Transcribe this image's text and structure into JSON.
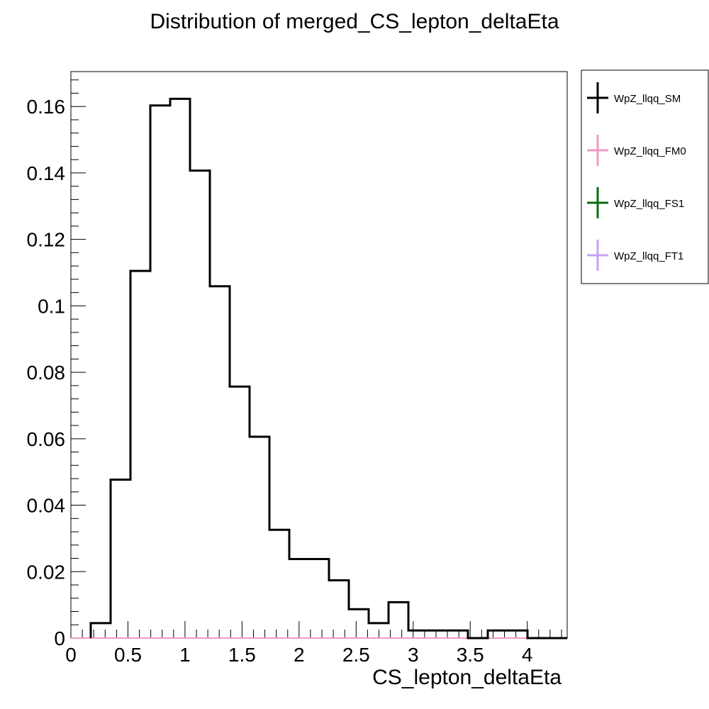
{
  "chart_data": {
    "type": "histogram",
    "title": "Distribution of merged_CS_lepton_deltaEta",
    "xlabel": "CS_lepton_deltaEta",
    "ylabel": "",
    "xlim": [
      0,
      4.35
    ],
    "ylim": [
      0,
      0.1705
    ],
    "xticks": [
      0,
      0.5,
      1,
      1.5,
      2,
      2.5,
      3,
      3.5,
      4
    ],
    "xtick_labels": [
      "0",
      "0.5",
      "1",
      "1.5",
      "2",
      "2.5",
      "3",
      "3.5",
      "4"
    ],
    "yticks": [
      0,
      0.02,
      0.04,
      0.06,
      0.08,
      0.1,
      0.12,
      0.14,
      0.16
    ],
    "ytick_labels": [
      "0",
      "0.02",
      "0.04",
      "0.06",
      "0.08",
      "0.1",
      "0.12",
      "0.14",
      "0.16"
    ],
    "legend_position": "right",
    "bin_edges": [
      0.0,
      0.174,
      0.348,
      0.522,
      0.696,
      0.87,
      1.044,
      1.218,
      1.392,
      1.566,
      1.74,
      1.914,
      2.088,
      2.262,
      2.436,
      2.61,
      2.784,
      2.958,
      3.132,
      3.306,
      3.48,
      3.654,
      3.828,
      4.002,
      4.176,
      4.35
    ],
    "series": [
      {
        "name": "WpZ_llqq_SM",
        "color": "#000000",
        "values": [
          0,
          0.0045,
          0.0477,
          0.1105,
          0.1603,
          0.1623,
          0.1407,
          0.1059,
          0.0757,
          0.0606,
          0.0326,
          0.0238,
          0.0238,
          0.0174,
          0.0087,
          0.0045,
          0.0108,
          0.0023,
          0.0023,
          0.0023,
          0,
          0.0023,
          0.0023,
          0,
          0
        ]
      },
      {
        "name": "WpZ_llqq_FM0",
        "color": "#f09ac4",
        "values": [
          0,
          0,
          0,
          0,
          0,
          0,
          0,
          0,
          0,
          0,
          0,
          0,
          0,
          0,
          0,
          0,
          0,
          0,
          0,
          0,
          0,
          0,
          0,
          0,
          0
        ]
      },
      {
        "name": "WpZ_llqq_FS1",
        "color": "#0a6a12",
        "values": [
          0,
          0,
          0,
          0,
          0,
          0,
          0,
          0,
          0,
          0,
          0,
          0,
          0,
          0,
          0,
          0,
          0,
          0,
          0,
          0,
          0,
          0,
          0,
          0,
          0
        ]
      },
      {
        "name": "WpZ_llqq_FT1",
        "color": "#c8a0f0",
        "values": [
          0,
          0,
          0,
          0,
          0,
          0,
          0,
          0,
          0,
          0,
          0,
          0,
          0,
          0,
          0,
          0,
          0,
          0,
          0,
          0,
          0,
          0,
          0,
          0,
          0
        ]
      }
    ]
  }
}
